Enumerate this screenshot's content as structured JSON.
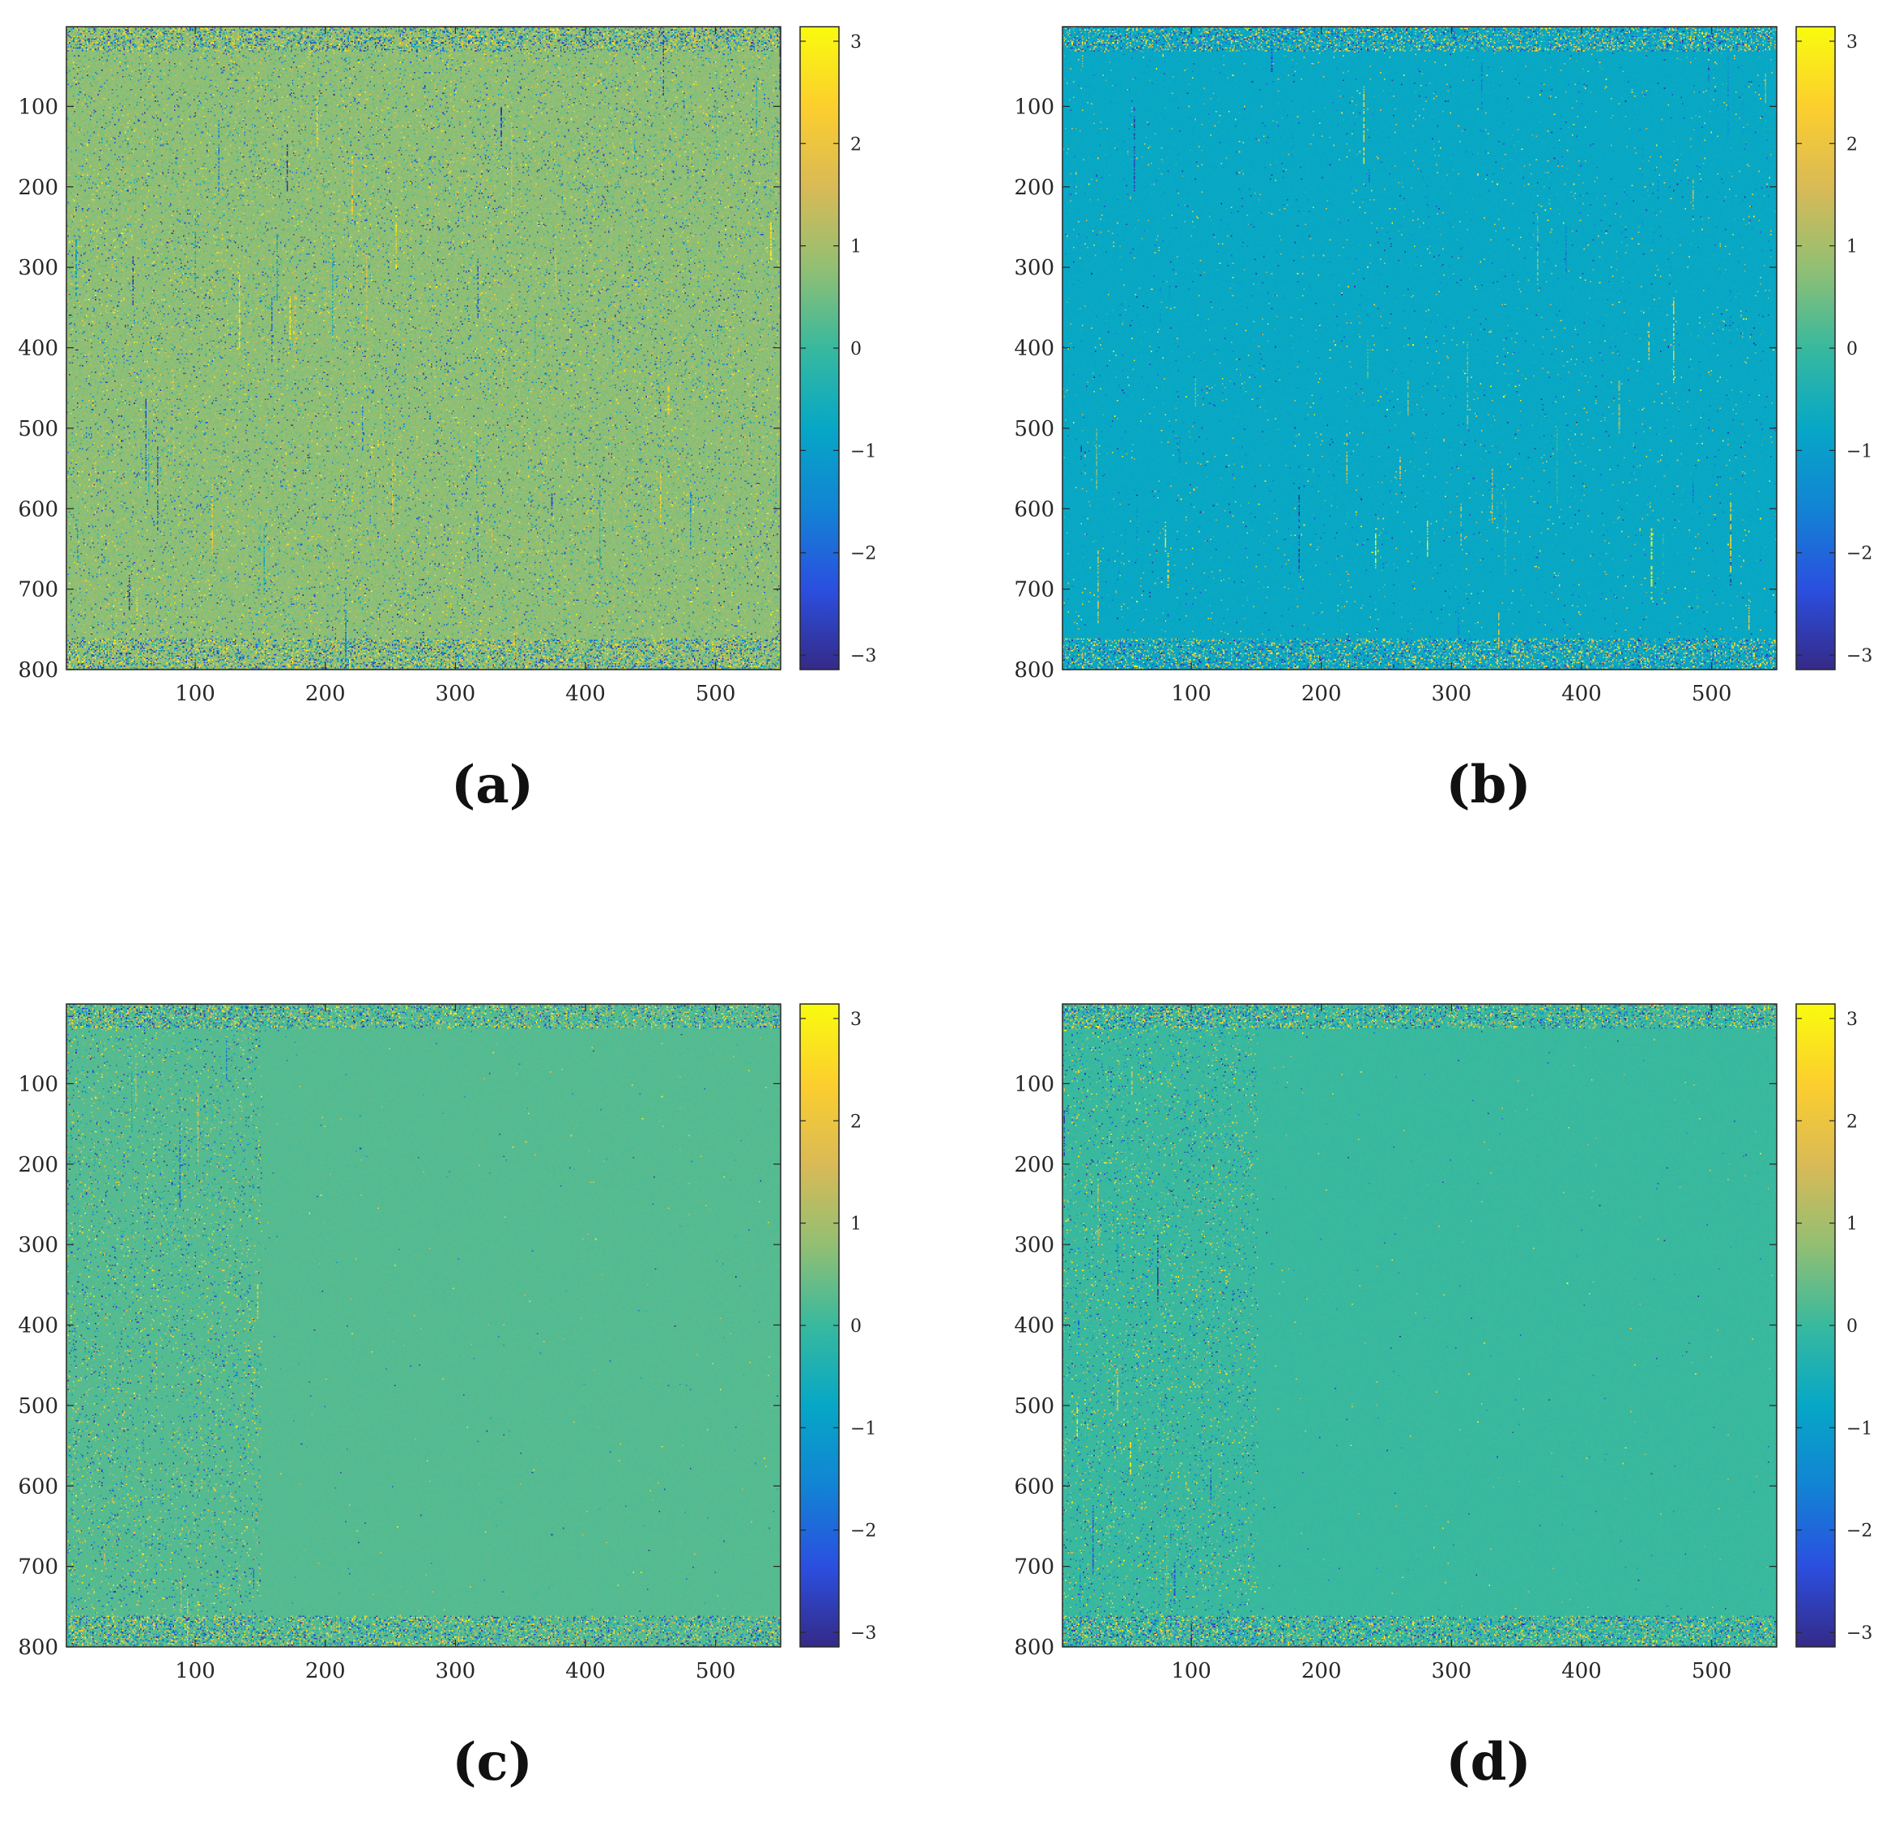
{
  "chart_data": [
    {
      "type": "heatmap",
      "caption": "(a)",
      "xticks": [
        100,
        200,
        300,
        400,
        500
      ],
      "yticks": [
        100,
        200,
        300,
        400,
        500,
        600,
        700,
        800
      ],
      "xlim": [
        1,
        550
      ],
      "ylim": [
        1,
        800
      ],
      "colorbar": {
        "ticks": [
          3,
          2,
          1,
          0,
          -1,
          -2,
          -3
        ],
        "range": [
          -3.1416,
          3.1416
        ],
        "colormap": "parula"
      },
      "base_value": 0.75,
      "noise_pattern": "noisy-throughout",
      "base_color": "#5cc86c"
    },
    {
      "type": "heatmap",
      "caption": "(b)",
      "xticks": [
        100,
        200,
        300,
        400,
        500
      ],
      "yticks": [
        100,
        200,
        300,
        400,
        500,
        600,
        700,
        800
      ],
      "xlim": [
        1,
        550
      ],
      "ylim": [
        1,
        800
      ],
      "colorbar": {
        "ticks": [
          3,
          2,
          1,
          0,
          -1,
          -2,
          -3
        ],
        "range": [
          -3.1416,
          3.1416
        ],
        "colormap": "parula"
      },
      "base_value": -0.75,
      "noise_pattern": "sparse-throughout",
      "base_color": "#1ea0da"
    },
    {
      "type": "heatmap",
      "caption": "(c)",
      "xticks": [
        100,
        200,
        300,
        400,
        500
      ],
      "yticks": [
        100,
        200,
        300,
        400,
        500,
        600,
        700,
        800
      ],
      "xlim": [
        1,
        550
      ],
      "ylim": [
        1,
        800
      ],
      "colorbar": {
        "ticks": [
          3,
          2,
          1,
          0,
          -1,
          -2,
          -3
        ],
        "range": [
          -3.1416,
          3.1416
        ],
        "colormap": "parula"
      },
      "base_value": 0.25,
      "noise_pattern": "noisy-left-of-150",
      "base_color": "#22c3ad"
    },
    {
      "type": "heatmap",
      "caption": "(d)",
      "xticks": [
        100,
        200,
        300,
        400,
        500
      ],
      "yticks": [
        100,
        200,
        300,
        400,
        500,
        600,
        700,
        800
      ],
      "xlim": [
        1,
        550
      ],
      "ylim": [
        1,
        800
      ],
      "colorbar": {
        "ticks": [
          3,
          2,
          1,
          0,
          -1,
          -2,
          -3
        ],
        "range": [
          -3.1416,
          3.1416
        ],
        "colormap": "parula"
      },
      "base_value": 0.0,
      "noise_pattern": "noisy-left-of-150",
      "base_color": "#05bbbd"
    }
  ],
  "colors": {
    "parula_stops": [
      "#352a87",
      "#2b4fe0",
      "#1283d4",
      "#06a7c6",
      "#38b99e",
      "#92bf73",
      "#d9ba56",
      "#fcce2e",
      "#f9fb0e"
    ]
  }
}
